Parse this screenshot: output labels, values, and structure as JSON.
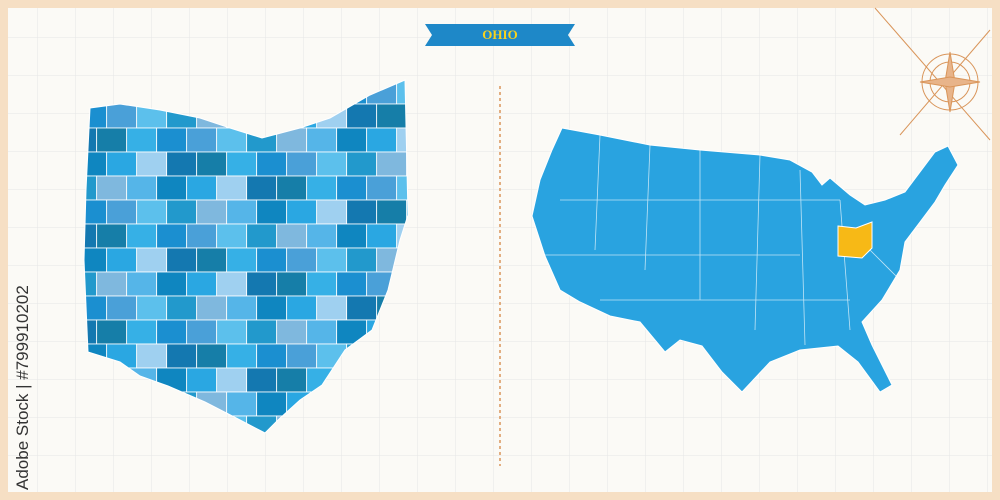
{
  "title": "OHIO",
  "watermark": "Adobe Stock | #799910202"
}
